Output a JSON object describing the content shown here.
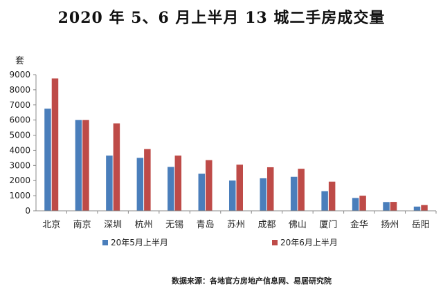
{
  "chart_data": {
    "type": "bar",
    "title": "2020 年 5、6 月上半月 13 城二手房成交量",
    "ylabel": "套",
    "ylim": [
      0,
      9000
    ],
    "yticks": [
      0,
      1000,
      2000,
      3000,
      4000,
      5000,
      6000,
      7000,
      8000,
      9000
    ],
    "grid": false,
    "legend_position": "bottom",
    "categories": [
      "北京",
      "南京",
      "深圳",
      "杭州",
      "无锡",
      "青岛",
      "苏州",
      "成都",
      "佛山",
      "厦门",
      "金华",
      "扬州",
      "岳阳"
    ],
    "series": [
      {
        "name": "20年5月上半月",
        "color": "#4a7ebb",
        "values": [
          6750,
          6000,
          3650,
          3500,
          2900,
          2450,
          2000,
          2150,
          2250,
          1300,
          850,
          580,
          280
        ]
      },
      {
        "name": "20年6月上半月",
        "color": "#be4b48",
        "values": [
          8750,
          6000,
          5780,
          4080,
          3650,
          3350,
          3050,
          2880,
          2780,
          1930,
          1000,
          590,
          380
        ]
      }
    ]
  },
  "source_note": "数据来源：各地官方房地产信息网、易居研究院"
}
